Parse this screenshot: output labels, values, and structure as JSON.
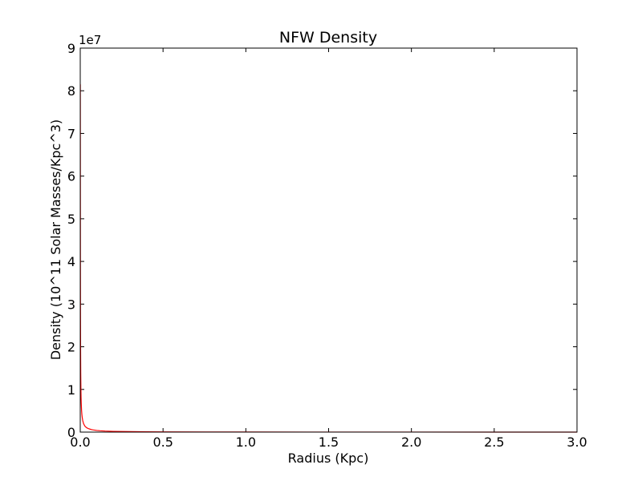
{
  "chart_data": {
    "type": "line",
    "title": "NFW Density",
    "xlabel": "Radius (Kpc)",
    "ylabel": "Density (10^11 Solar Masses/Kpc^3)",
    "y_offset_label": "1e7",
    "xlim": [
      0,
      3.0
    ],
    "ylim": [
      0,
      9
    ],
    "y_scale_factor": 10000000,
    "x_ticks": [
      0.0,
      0.5,
      1.0,
      1.5,
      2.0,
      2.5,
      3.0
    ],
    "x_tick_labels": [
      "0.0",
      "0.5",
      "1.0",
      "1.5",
      "2.0",
      "2.5",
      "3.0"
    ],
    "y_ticks": [
      0,
      1,
      2,
      3,
      4,
      5,
      6,
      7,
      8,
      9
    ],
    "y_tick_labels": [
      "0",
      "1",
      "2",
      "3",
      "4",
      "5",
      "6",
      "7",
      "8",
      "9"
    ],
    "grid": false,
    "series": [
      {
        "color": "#ff0000",
        "x": [
          0.0005,
          0.001,
          0.0015,
          0.002,
          0.003,
          0.004,
          0.005,
          0.006,
          0.008,
          0.01,
          0.012,
          0.015,
          0.02,
          0.025,
          0.03,
          0.04,
          0.05,
          0.06,
          0.07,
          0.08,
          0.1,
          0.12,
          0.15,
          0.2,
          0.25,
          0.3,
          0.4,
          0.5,
          0.75,
          1.0,
          1.5,
          2.0,
          2.5,
          3.0
        ],
        "y": [
          8.15,
          4.07,
          2.72,
          2.03,
          1.36,
          1.02,
          0.81,
          0.68,
          0.51,
          0.41,
          0.34,
          0.27,
          0.2,
          0.16,
          0.13,
          0.1,
          0.08,
          0.068,
          0.058,
          0.05,
          0.039,
          0.032,
          0.025,
          0.018,
          0.014,
          0.011,
          0.0078,
          0.006,
          0.0035,
          0.0023,
          0.0012,
          0.0007,
          0.0005,
          0.0003
        ]
      }
    ]
  }
}
